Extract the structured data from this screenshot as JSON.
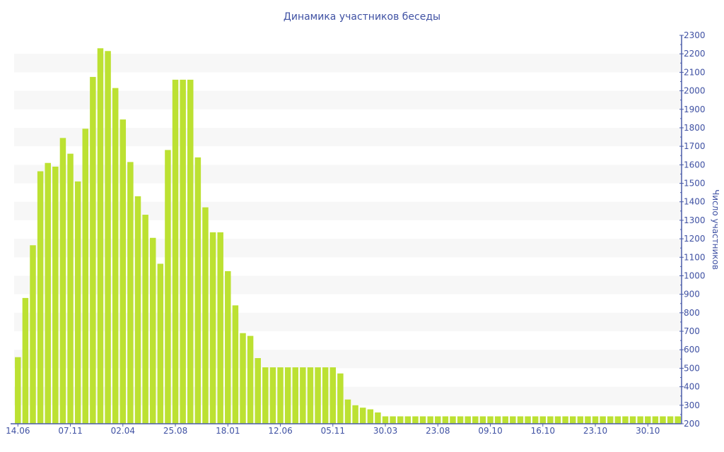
{
  "chart_data": {
    "type": "bar",
    "title": "Динамика участников беседы",
    "xlabel": "",
    "ylabel": "Число участников",
    "ylim": [
      200,
      2300
    ],
    "y_axis_position": "right",
    "y_ticks": [
      200,
      300,
      400,
      500,
      600,
      700,
      800,
      900,
      1000,
      1100,
      1200,
      1300,
      1400,
      1500,
      1600,
      1700,
      1800,
      1900,
      2000,
      2100,
      2200,
      2300
    ],
    "x_tick_labels": [
      {
        "index": 0,
        "label": "14.06"
      },
      {
        "index": 7,
        "label": "07.11"
      },
      {
        "index": 14,
        "label": "02.04"
      },
      {
        "index": 21,
        "label": "25.08"
      },
      {
        "index": 28,
        "label": "18.01"
      },
      {
        "index": 35,
        "label": "12.06"
      },
      {
        "index": 42,
        "label": "05.11"
      },
      {
        "index": 49,
        "label": "30.03"
      },
      {
        "index": 56,
        "label": "23.08"
      },
      {
        "index": 63,
        "label": "09.10"
      },
      {
        "index": 70,
        "label": "16.10"
      },
      {
        "index": 77,
        "label": "23.10"
      },
      {
        "index": 84,
        "label": "30.10"
      }
    ],
    "grid": "alternating horizontal bands",
    "legend": "none",
    "bar_color": "#bce132",
    "band_color": "#f7f7f7",
    "axis_color": "#4a5ca8",
    "values": [
      560,
      880,
      1165,
      1565,
      1610,
      1590,
      1745,
      1660,
      1510,
      1795,
      2075,
      2230,
      2215,
      2015,
      1845,
      1615,
      1430,
      1330,
      1205,
      1065,
      1680,
      2060,
      2060,
      2060,
      1640,
      1370,
      1235,
      1235,
      1025,
      840,
      690,
      675,
      555,
      505,
      505,
      505,
      505,
      505,
      505,
      505,
      505,
      505,
      505,
      472,
      331,
      300,
      287,
      278,
      261,
      240,
      240,
      240,
      240,
      240,
      240,
      240,
      240,
      240,
      240,
      240,
      240,
      240,
      240,
      240,
      240,
      240,
      240,
      240,
      240,
      240,
      240,
      240,
      240,
      240,
      240,
      240,
      240,
      240,
      240,
      240,
      240,
      240,
      240,
      240,
      240,
      240,
      240,
      240,
      240
    ]
  }
}
